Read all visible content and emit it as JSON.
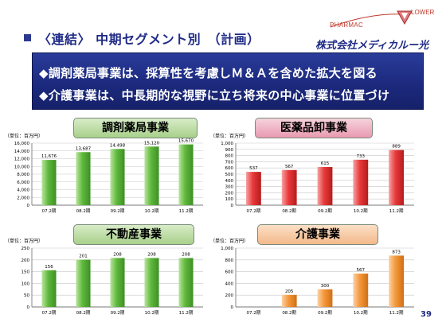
{
  "page": {
    "title": "〈連結〉 中期セグメント別　（計画）",
    "logo_top": "LOWER",
    "logo_left": "PHARMAC",
    "company": "株式会社メディカルー光",
    "page_number": "39"
  },
  "banner": {
    "line1": "◆調剤薬局事業は、採算性を考慮しＭ＆Ａを含めた拡大を図る",
    "line2": "◆介護事業は、中長期的な視野に立ち将来の中心事業に位置づけ"
  },
  "colors": {
    "navy": "#1f2b86",
    "green_bar": "#6cc04a",
    "red_bar": "#e9393a",
    "orange_bar": "#f49b3d"
  },
  "chart_data": [
    {
      "type": "bar",
      "title": "調剤薬局事業",
      "unit": "（単位：百万円）",
      "categories": [
        "07.2期",
        "08.2期",
        "09.2期",
        "10.2期",
        "11.2期"
      ],
      "values": [
        11676,
        13687,
        14498,
        15120,
        15670
      ],
      "value_labels": [
        "11,676",
        "13,687",
        "14,498",
        "15,120",
        "15,670"
      ],
      "ylim": [
        0,
        16000
      ],
      "yticks": [
        0,
        2000,
        4000,
        6000,
        8000,
        10000,
        12000,
        14000,
        16000
      ],
      "ytick_labels": [
        "0",
        "2,000",
        "4,000",
        "6,000",
        "8,000",
        "10,000",
        "12,000",
        "14,000",
        "16,000"
      ],
      "color": "green",
      "grid": true
    },
    {
      "type": "bar",
      "title": "医薬品卸事業",
      "unit": "（単位：百万円）",
      "categories": [
        "07.2期",
        "08.2期",
        "09.2期",
        "10.2期",
        "11.2期"
      ],
      "values": [
        537,
        567,
        615,
        733,
        889
      ],
      "value_labels": [
        "537",
        "567",
        "615",
        "733",
        "889"
      ],
      "ylim": [
        0,
        1000
      ],
      "yticks": [
        0,
        100,
        200,
        300,
        400,
        500,
        600,
        700,
        800,
        900,
        1000
      ],
      "ytick_labels": [
        "0",
        "100",
        "200",
        "300",
        "400",
        "500",
        "600",
        "700",
        "800",
        "900",
        "1,000"
      ],
      "color": "red",
      "grid": true
    },
    {
      "type": "bar",
      "title": "不動産事業",
      "unit": "（単位：百万円）",
      "categories": [
        "07.2期",
        "08.2期",
        "09.2期",
        "10.2期",
        "11.2期"
      ],
      "values": [
        156,
        201,
        208,
        208,
        208
      ],
      "value_labels": [
        "156",
        "201",
        "208",
        "208",
        "208"
      ],
      "ylim": [
        0,
        250
      ],
      "yticks": [
        0,
        50,
        100,
        150,
        200,
        250
      ],
      "ytick_labels": [
        "0",
        "50",
        "100",
        "150",
        "200",
        "250"
      ],
      "color": "green",
      "grid": true
    },
    {
      "type": "bar",
      "title": "介護事業",
      "unit": "（単位：百万円）",
      "categories": [
        "07.2期",
        "08.2期",
        "09.2期",
        "10.2期",
        "11.2期"
      ],
      "values": [
        0,
        205,
        300,
        567,
        873
      ],
      "value_labels": [
        "",
        "205",
        "300",
        "567",
        "873"
      ],
      "ylim": [
        0,
        1000
      ],
      "yticks": [
        0,
        200,
        400,
        600,
        800,
        1000
      ],
      "ytick_labels": [
        "0",
        "200",
        "400",
        "600",
        "800",
        "1,000"
      ],
      "color": "orange",
      "grid": true
    }
  ]
}
